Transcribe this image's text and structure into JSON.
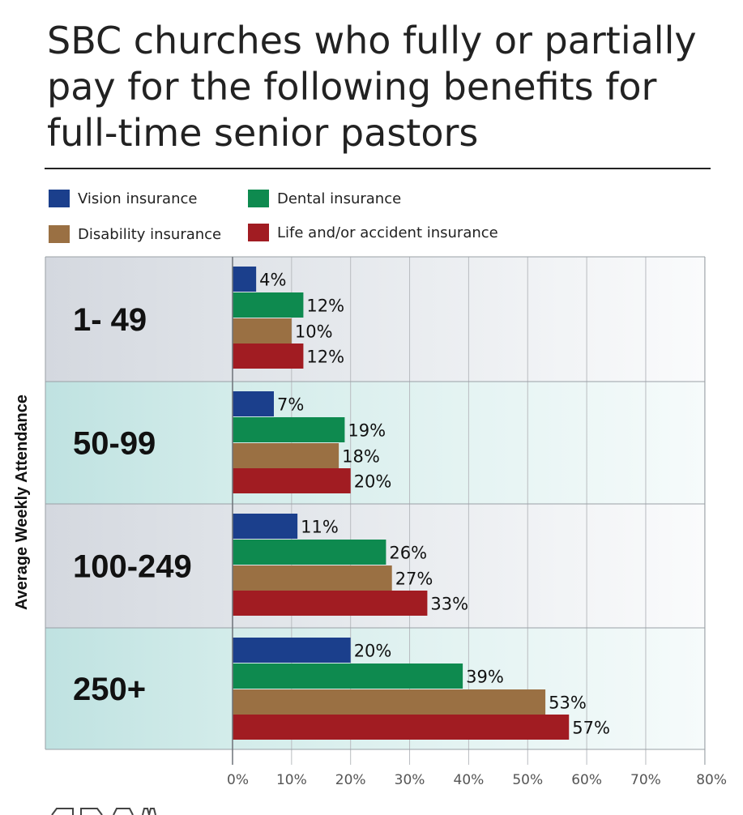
{
  "title": "SBC churches who fully or partially pay for the following benefits for full-time senior pastors",
  "title_lines": [
    "SBC churches who fully or partially",
    "pay for the following benefits for",
    "full-time senior pastors"
  ],
  "legend": [
    {
      "name": "Vision insurance",
      "color": "#1b3f8c"
    },
    {
      "name": "Dental insurance",
      "color": "#0e8a4f"
    },
    {
      "name": "Disability insurance",
      "color": "#9a7043"
    },
    {
      "name": "Life and/or accident insurance",
      "color": "#a11c22"
    }
  ],
  "chart_data": {
    "type": "bar",
    "orientation": "horizontal",
    "ylabel": "Average Weekly Attendance",
    "xlabel": "",
    "xlim": [
      0,
      80
    ],
    "x_ticks": [
      "0%",
      "10%",
      "20%",
      "30%",
      "40%",
      "50%",
      "60%",
      "70%",
      "80%"
    ],
    "grid": true,
    "categories": [
      "1- 49",
      "50-99",
      "100-249",
      "250+"
    ],
    "series": [
      {
        "name": "Vision insurance",
        "color": "#1b3f8c",
        "values": [
          4,
          7,
          11,
          20
        ],
        "labels": [
          "4%",
          "7%",
          "11%",
          "20%"
        ]
      },
      {
        "name": "Dental insurance",
        "color": "#0e8a4f",
        "values": [
          12,
          19,
          26,
          39
        ],
        "labels": [
          "12%",
          "19%",
          "26%",
          "39%"
        ]
      },
      {
        "name": "Disability insurance",
        "color": "#9a7043",
        "values": [
          10,
          18,
          27,
          53
        ],
        "labels": [
          "10%",
          "18%",
          "27%",
          "53%"
        ]
      },
      {
        "name": "Life and/or accident insurance",
        "color": "#a11c22",
        "values": [
          12,
          20,
          33,
          57
        ],
        "labels": [
          "12%",
          "20%",
          "33%",
          "57%"
        ]
      }
    ]
  }
}
